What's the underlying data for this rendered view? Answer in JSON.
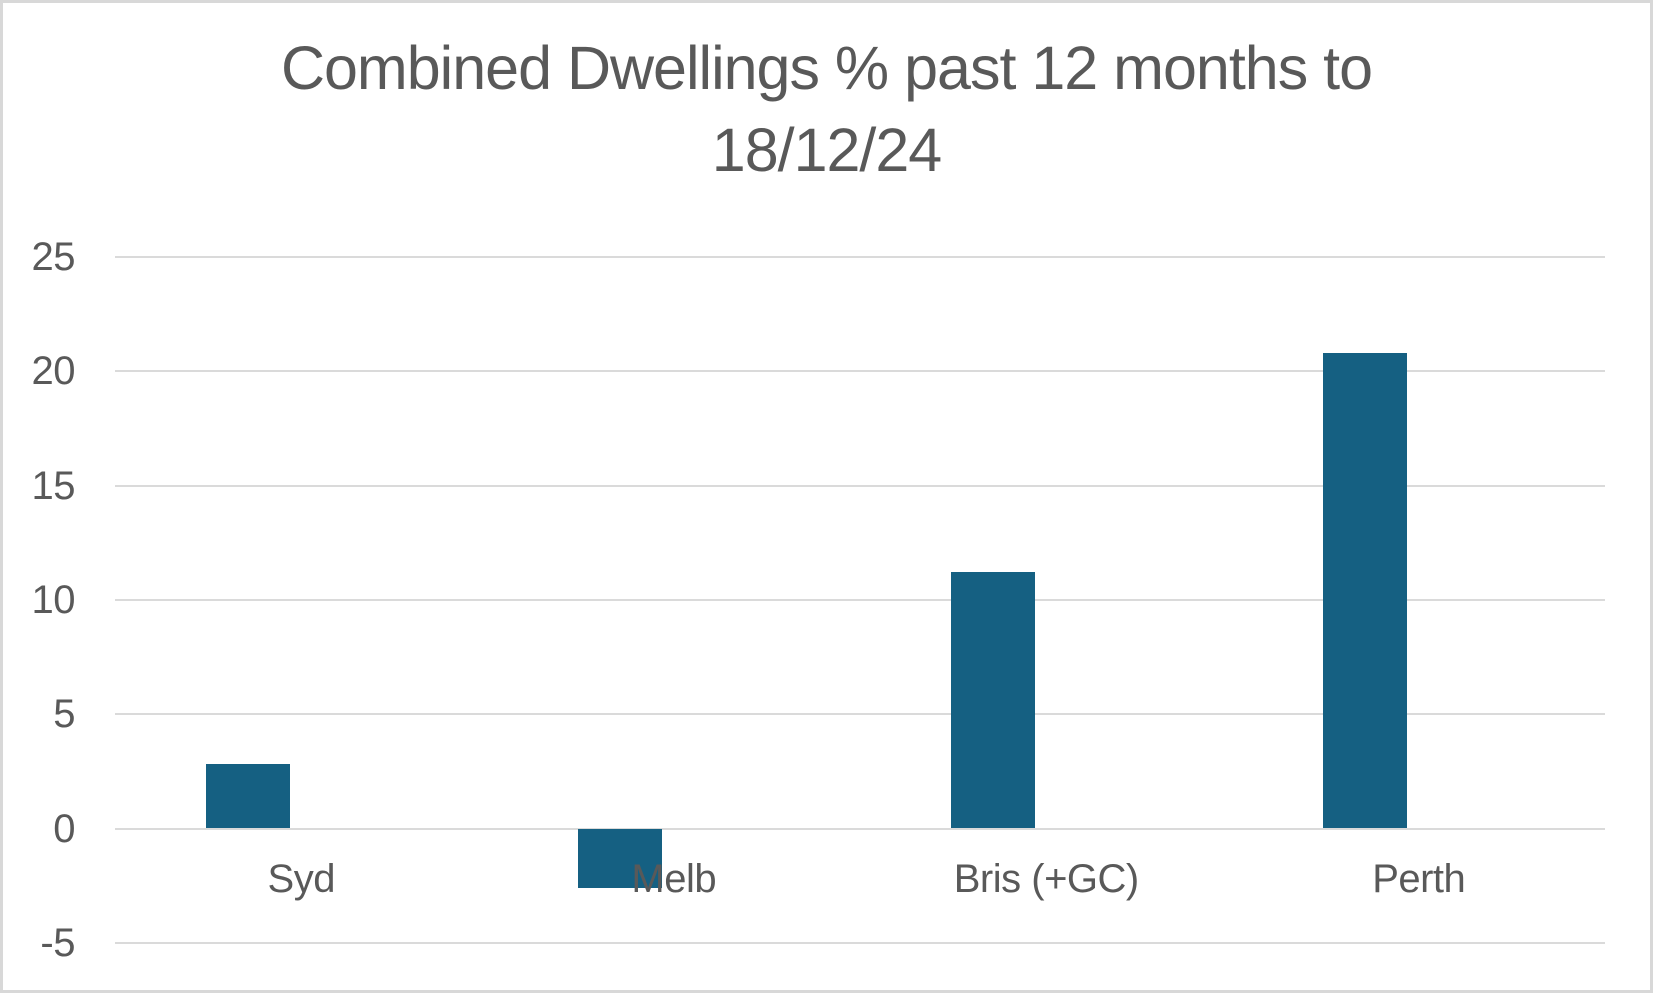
{
  "chart_data": {
    "type": "bar",
    "title": "Combined Dwellings % past 12 months to 18/12/24",
    "title_lines": [
      "Combined Dwellings % past 12 months to",
      "18/12/24"
    ],
    "categories": [
      "Syd",
      "Melb",
      "Bris (+GC)",
      "Perth"
    ],
    "values": [
      2.8,
      -2.6,
      11.2,
      20.8
    ],
    "xlabel": "",
    "ylabel": "",
    "ylim": [
      -5,
      25
    ],
    "yticks": [
      25,
      20,
      15,
      10,
      5,
      0,
      -5
    ],
    "grid": true,
    "legend": false,
    "colors": {
      "bar": "#156082",
      "text": "#595959",
      "gridline": "#dadada",
      "background": "#ffffff",
      "frame_border": "#d8d8d8"
    }
  }
}
